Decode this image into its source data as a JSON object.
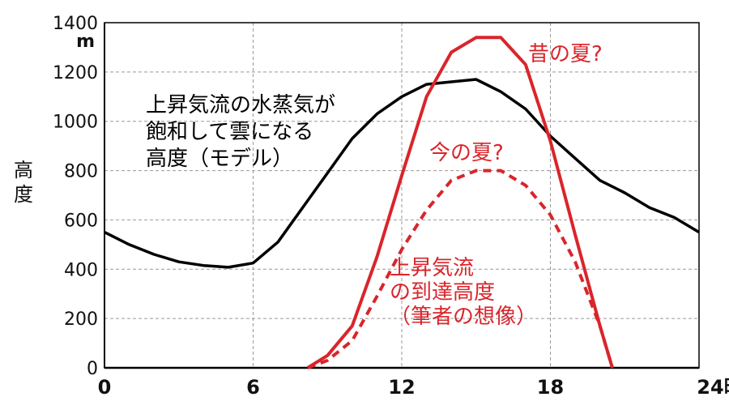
{
  "chart_data": {
    "type": "line",
    "title": "",
    "xlabel": "",
    "ylabel": "高度",
    "y_unit": "m",
    "x_unit_suffix": "時",
    "xlim": [
      0,
      24
    ],
    "ylim": [
      0,
      1400
    ],
    "x_ticks": [
      0,
      6,
      12,
      18,
      24
    ],
    "y_ticks": [
      0,
      200,
      400,
      600,
      800,
      1000,
      1200,
      1400
    ],
    "grid": true,
    "colors": {
      "model": "#000000",
      "past": "#d9252b",
      "present": "#d9252b",
      "grid": "#999999"
    },
    "series": [
      {
        "id": "model",
        "style": "solid",
        "x": [
          0,
          1,
          2,
          3,
          4,
          5,
          6,
          7,
          8,
          9,
          10,
          11,
          12,
          13,
          14,
          15,
          16,
          17,
          18,
          19,
          20,
          21,
          22,
          23,
          24
        ],
        "values": [
          550,
          500,
          460,
          430,
          415,
          408,
          425,
          510,
          650,
          790,
          930,
          1030,
          1100,
          1150,
          1160,
          1170,
          1120,
          1050,
          940,
          850,
          760,
          710,
          650,
          610,
          550
        ]
      },
      {
        "id": "past",
        "style": "solid",
        "x": [
          8.2,
          9,
          10,
          11,
          12,
          13,
          14,
          15,
          16,
          17,
          18,
          19,
          20,
          20.5
        ],
        "values": [
          0,
          50,
          170,
          450,
          780,
          1100,
          1280,
          1340,
          1340,
          1230,
          920,
          540,
          170,
          0
        ]
      },
      {
        "id": "present",
        "style": "dashed",
        "x": [
          8.2,
          9,
          10,
          11,
          12,
          13,
          14,
          15,
          16,
          17,
          18,
          19,
          20,
          20.5
        ],
        "values": [
          0,
          30,
          110,
          290,
          480,
          640,
          760,
          800,
          800,
          740,
          620,
          430,
          170,
          0
        ]
      }
    ],
    "annotations": [
      {
        "id": "model_label",
        "lines": [
          "上昇気流の水蒸気が",
          "飽和して雲になる",
          "高度（モデル）"
        ],
        "color": "#000000"
      },
      {
        "id": "past_label",
        "lines": [
          "昔の夏?"
        ],
        "color": "#d9252b"
      },
      {
        "id": "present_label",
        "lines": [
          "今の夏?"
        ],
        "color": "#d9252b"
      },
      {
        "id": "reach_label",
        "lines": [
          "上昇気流",
          "の到達高度",
          "（筆者の想像）"
        ],
        "color": "#d9252b"
      }
    ]
  }
}
